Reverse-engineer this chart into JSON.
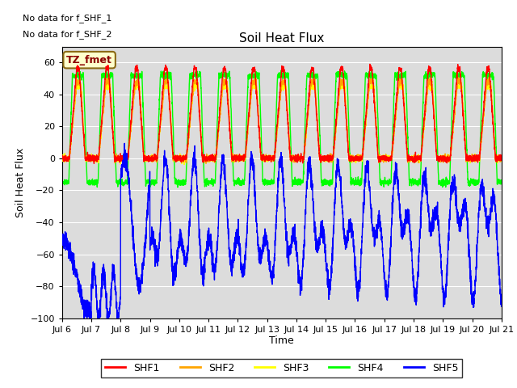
{
  "title": "Soil Heat Flux",
  "ylabel": "Soil Heat Flux",
  "xlabel": "Time",
  "annotations": [
    "No data for f_SHF_1",
    "No data for f_SHF_2"
  ],
  "tz_label": "TZ_fmet",
  "ylim": [
    -100,
    70
  ],
  "xlim": [
    0,
    360
  ],
  "yticks": [
    -100,
    -80,
    -60,
    -40,
    -20,
    0,
    20,
    40,
    60
  ],
  "xtick_labels": [
    "Jul 6",
    "Jul 7",
    "Jul 8",
    "Jul 9",
    "Jul 10",
    "Jul 11",
    "Jul 12",
    "Jul 13",
    "Jul 14",
    "Jul 15",
    "Jul 16",
    "Jul 17",
    "Jul 18",
    "Jul 19",
    "Jul 20",
    "Jul 21"
  ],
  "series_colors": {
    "SHF1": "#ff0000",
    "SHF2": "#ffa500",
    "SHF3": "#ffff00",
    "SHF4": "#00ff00",
    "SHF5": "#0000ff"
  },
  "background_color": "#dcdcdc",
  "legend_colors": [
    "#ff0000",
    "#ffa500",
    "#ffff00",
    "#00ff00",
    "#0000ff"
  ],
  "legend_labels": [
    "SHF1",
    "SHF2",
    "SHF3",
    "SHF4",
    "SHF5"
  ],
  "n_points": 3600
}
